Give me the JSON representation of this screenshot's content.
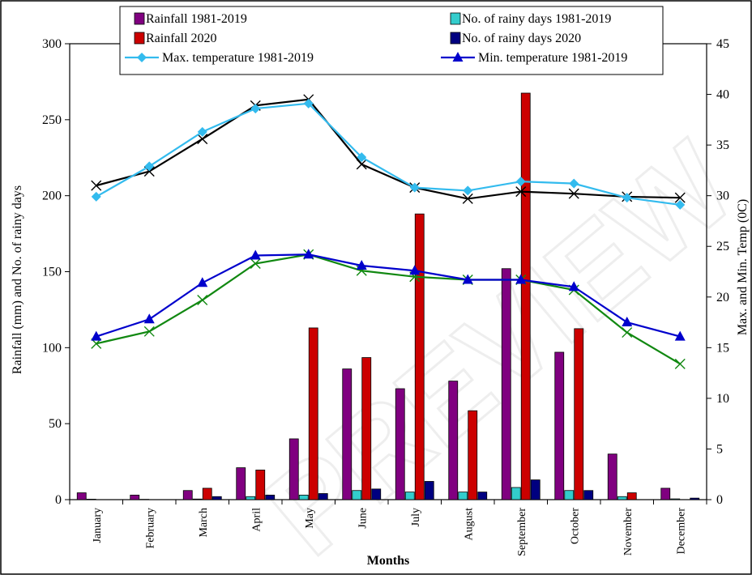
{
  "chart_data": {
    "type": "bar",
    "categories": [
      "January",
      "February",
      "March",
      "April",
      "May",
      "June",
      "July",
      "August",
      "September",
      "October",
      "November",
      "December"
    ],
    "xlabel": "Months",
    "ylabel": "Rainfall (mm) and No. of rainy days",
    "y2label": "Max. and Min. Temp (0C)",
    "ylim": [
      0,
      300
    ],
    "y2lim": [
      0,
      45
    ],
    "yticks": [
      "0",
      "50",
      "100",
      "150",
      "200",
      "250",
      "300"
    ],
    "y2ticks": [
      "0",
      "5",
      "10",
      "15",
      "20",
      "25",
      "30",
      "35",
      "40",
      "45"
    ],
    "bar_series": [
      {
        "name": "Rainfall 1981-2019",
        "color": "#800080",
        "values": [
          4.5,
          3,
          6,
          21,
          40,
          86,
          73,
          78,
          152,
          97,
          30,
          7.5
        ]
      },
      {
        "name": "No. of rainy days 1981-2019",
        "color": "#33cccc",
        "values": [
          0.3,
          0.2,
          0.4,
          2,
          3,
          6,
          5,
          5,
          8,
          6,
          2,
          0.5
        ]
      },
      {
        "name": "Rainfall 2020",
        "color": "#cc0000",
        "values": [
          0,
          0,
          7.5,
          19.5,
          113,
          93.5,
          188,
          58.5,
          267.5,
          112.5,
          4.5,
          0
        ]
      },
      {
        "name": "No. of rainy days 2020",
        "color": "#000080",
        "values": [
          0,
          0,
          2,
          3,
          4,
          7,
          12,
          5,
          13,
          6,
          0,
          1
        ]
      }
    ],
    "line_series": [
      {
        "name": "Max. temperature 1981-2019",
        "color": "#33bbee",
        "marker": "diamond",
        "axis": "right",
        "values": [
          29.9,
          32.9,
          36.3,
          38.6,
          39.1,
          33.8,
          30.8,
          30.5,
          31.4,
          31.2,
          29.8,
          29.1
        ]
      },
      {
        "name": "Min. temperature 1981-2019",
        "color": "#0000cc",
        "marker": "triangle",
        "axis": "right",
        "values": [
          16.1,
          17.8,
          21.4,
          24.1,
          24.2,
          23.1,
          22.6,
          21.7,
          21.7,
          21,
          17.5,
          16.1
        ]
      },
      {
        "name": "",
        "color": "#000000",
        "marker": "x",
        "axis": "right",
        "values": [
          31,
          32.4,
          35.6,
          38.9,
          39.5,
          33.1,
          30.8,
          29.7,
          30.4,
          30.2,
          29.9,
          29.8
        ]
      },
      {
        "name": "",
        "color": "#118811",
        "marker": "x",
        "axis": "right",
        "values": [
          15.4,
          16.6,
          19.7,
          23.3,
          24.2,
          22.6,
          22,
          21.7,
          21.7,
          20.7,
          16.5,
          13.4
        ]
      }
    ],
    "grid": false,
    "legend_position": "top"
  },
  "watermark_text": "PREVIEW"
}
